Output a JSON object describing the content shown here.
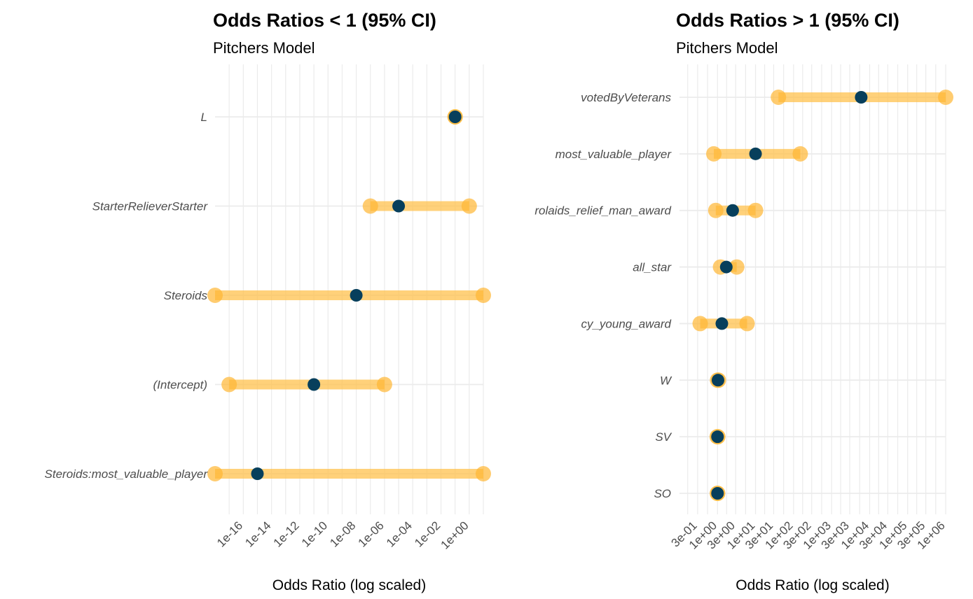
{
  "chart_data": [
    {
      "type": "dot-interval",
      "title": "Odds Ratios < 1 (95% CI)",
      "subtitle": "Pitchers Model",
      "xlabel": "Odds Ratio (log scaled)",
      "ylabel": "",
      "x_scale": "log10",
      "xlim": [
        1e-18,
        10
      ],
      "x_ticks": [
        1e-16,
        1e-14,
        1e-12,
        1e-10,
        1e-08,
        1e-06,
        0.0001,
        0.01,
        1
      ],
      "x_tick_labels": [
        "1e-16",
        "1e-14",
        "1e-12",
        "1e-10",
        "1e-08",
        "1e-06",
        "1e-04",
        "1e-02",
        "1e+00"
      ],
      "grid": true,
      "colors": {
        "estimate": "#073f5c",
        "interval": "#ffc24d",
        "interval_end": "#ffb733"
      },
      "terms": [
        {
          "label": "L",
          "estimate": 0.1,
          "low": 0.1,
          "high": 0.1
        },
        {
          "label": "StarterRelieverStarter",
          "estimate": 1e-05,
          "low": 1e-07,
          "high": 1
        },
        {
          "label": "Steroids",
          "estimate": 1e-08,
          "low": 1e-18,
          "high": 10,
          "clipped": true
        },
        {
          "label": "(Intercept)",
          "estimate": 1e-11,
          "low": 1e-17,
          "high": 1e-06
        },
        {
          "label": "Steroids:most_valuable_player",
          "estimate": 1e-15,
          "low": 1e-18,
          "high": 10,
          "clipped": true
        }
      ]
    },
    {
      "type": "dot-interval",
      "title": "Odds Ratios > 1 (95% CI)",
      "subtitle": "Pitchers Model",
      "xlabel": "Odds Ratio (log scaled)",
      "ylabel": "",
      "x_scale": "log10",
      "xlim": [
        0.1,
        1000000
      ],
      "x_ticks": [
        0.3,
        1,
        3,
        10,
        30,
        100,
        300,
        1000,
        3000,
        10000,
        30000,
        100000,
        300000,
        1000000
      ],
      "x_tick_labels": [
        "3e-01",
        "1e+00",
        "3e+00",
        "1e+01",
        "3e+01",
        "1e+02",
        "3e+02",
        "1e+03",
        "3e+03",
        "1e+04",
        "3e+04",
        "1e+05",
        "3e+05",
        "1e+06"
      ],
      "grid": true,
      "colors": {
        "estimate": "#073f5c",
        "interval": "#ffc24d",
        "interval_end": "#ffb733"
      },
      "terms": [
        {
          "label": "votedByVeterans",
          "estimate": 6000,
          "low": 40,
          "high": 1000000
        },
        {
          "label": "most_valuable_player",
          "estimate": 10,
          "low": 0.8,
          "high": 150
        },
        {
          "label": "rolaids_relief_man_award",
          "estimate": 2.5,
          "low": 0.9,
          "high": 10
        },
        {
          "label": "all_star",
          "estimate": 1.7,
          "low": 1.2,
          "high": 3.2
        },
        {
          "label": "cy_young_award",
          "estimate": 1.3,
          "low": 0.35,
          "high": 6
        },
        {
          "label": "W",
          "estimate": 1.03,
          "low": 1.0,
          "high": 1.06
        },
        {
          "label": "SV",
          "estimate": 1.0,
          "low": 0.98,
          "high": 1.02
        },
        {
          "label": "SO",
          "estimate": 1.0,
          "low": 0.99,
          "high": 1.01
        }
      ]
    }
  ]
}
